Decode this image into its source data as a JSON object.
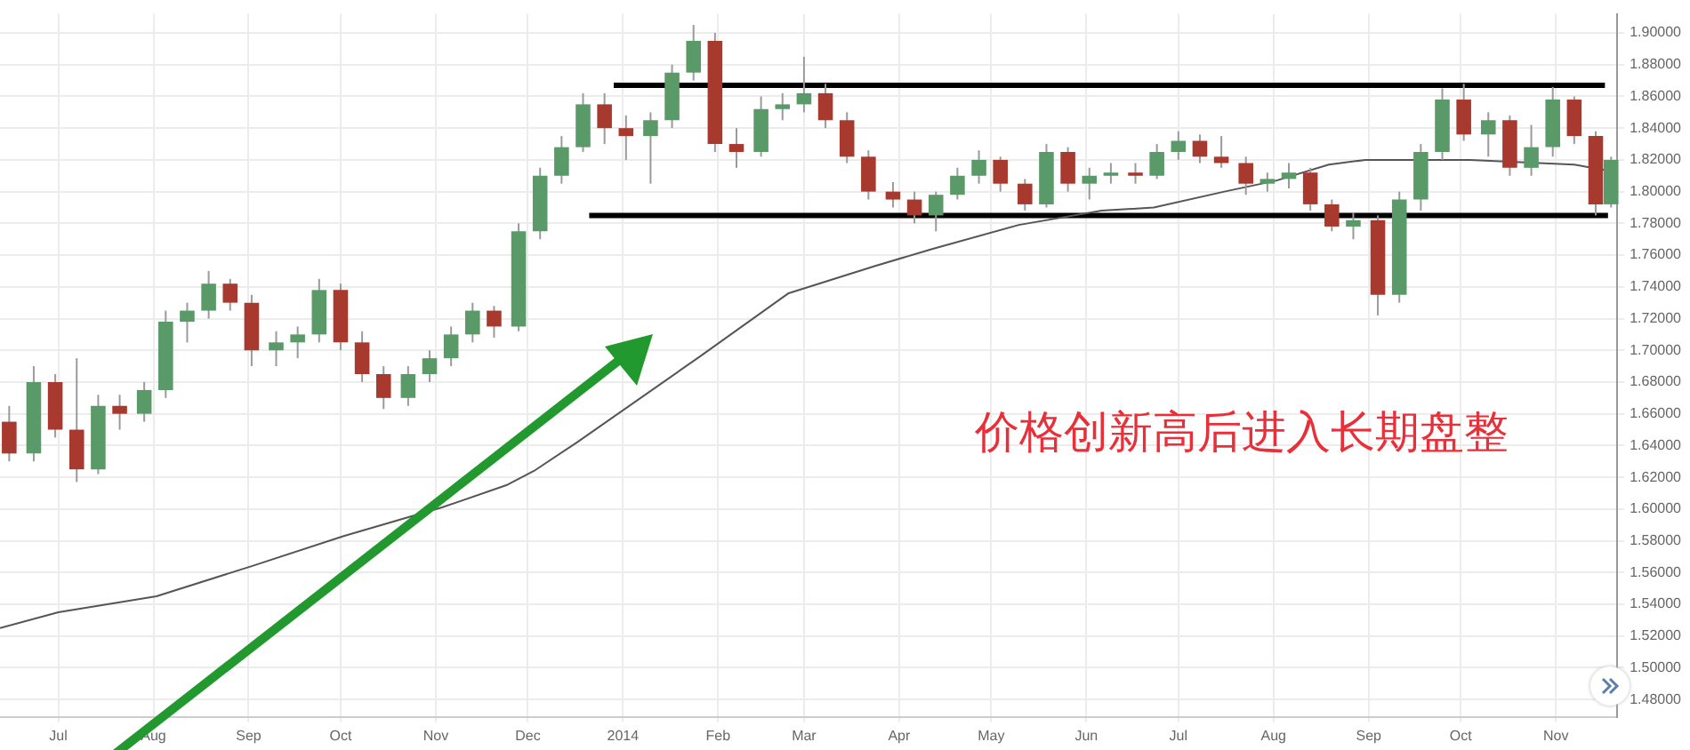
{
  "chart_data": {
    "type": "candlestick",
    "annotations": [
      "价格创新高后进入长期盘整"
    ],
    "x": [
      "2013-06-15",
      "2013-06-23",
      "2013-06-30",
      "2013-07-07",
      "2013-07-14",
      "2013-07-21",
      "2013-07-29",
      "2013-08-05",
      "2013-08-12",
      "2013-08-19",
      "2013-08-26",
      "2013-09-02",
      "2013-09-10",
      "2013-09-17",
      "2013-09-24",
      "2013-10-01",
      "2013-10-08",
      "2013-10-15",
      "2013-10-23",
      "2013-10-30",
      "2013-11-06",
      "2013-11-13",
      "2013-11-20",
      "2013-11-28",
      "2013-12-05",
      "2013-12-12",
      "2013-12-19",
      "2013-12-26",
      "2014-01-02",
      "2014-01-10",
      "2014-01-17",
      "2014-01-24",
      "2014-01-31",
      "2014-02-07",
      "2014-02-15",
      "2014-02-22",
      "2014-03-01",
      "2014-03-08",
      "2014-03-15",
      "2014-03-22",
      "2014-03-30",
      "2014-04-06",
      "2014-04-13",
      "2014-04-20",
      "2014-04-27",
      "2014-05-04",
      "2014-05-12",
      "2014-05-19",
      "2014-05-26",
      "2014-06-02",
      "2014-06-09",
      "2014-06-17",
      "2014-06-24",
      "2014-07-01",
      "2014-07-08",
      "2014-07-15",
      "2014-07-23",
      "2014-07-30",
      "2014-08-06",
      "2014-08-13",
      "2014-08-20",
      "2014-08-27",
      "2014-09-04",
      "2014-09-11",
      "2014-09-18",
      "2014-09-25",
      "2014-10-02",
      "2014-10-10",
      "2014-10-17",
      "2014-10-24",
      "2014-10-31",
      "2014-11-07",
      "2014-11-14",
      "2014-11-19"
    ],
    "ohlc": [
      [
        1.655,
        1.665,
        1.63,
        1.635
      ],
      [
        1.635,
        1.69,
        1.63,
        1.68
      ],
      [
        1.68,
        1.685,
        1.645,
        1.65
      ],
      [
        1.65,
        1.695,
        1.617,
        1.625
      ],
      [
        1.625,
        1.672,
        1.622,
        1.665
      ],
      [
        1.665,
        1.672,
        1.65,
        1.66
      ],
      [
        1.66,
        1.68,
        1.655,
        1.675
      ],
      [
        1.675,
        1.725,
        1.67,
        1.718
      ],
      [
        1.718,
        1.73,
        1.705,
        1.725
      ],
      [
        1.725,
        1.75,
        1.72,
        1.742
      ],
      [
        1.742,
        1.745,
        1.725,
        1.73
      ],
      [
        1.73,
        1.735,
        1.69,
        1.7
      ],
      [
        1.7,
        1.712,
        1.69,
        1.705
      ],
      [
        1.705,
        1.715,
        1.695,
        1.71
      ],
      [
        1.71,
        1.745,
        1.705,
        1.738
      ],
      [
        1.738,
        1.742,
        1.7,
        1.705
      ],
      [
        1.705,
        1.712,
        1.68,
        1.685
      ],
      [
        1.685,
        1.69,
        1.663,
        1.67
      ],
      [
        1.67,
        1.69,
        1.665,
        1.685
      ],
      [
        1.685,
        1.7,
        1.68,
        1.695
      ],
      [
        1.695,
        1.715,
        1.69,
        1.71
      ],
      [
        1.71,
        1.73,
        1.705,
        1.725
      ],
      [
        1.725,
        1.728,
        1.708,
        1.715
      ],
      [
        1.715,
        1.78,
        1.712,
        1.775
      ],
      [
        1.775,
        1.815,
        1.77,
        1.81
      ],
      [
        1.81,
        1.835,
        1.805,
        1.828
      ],
      [
        1.828,
        1.862,
        1.825,
        1.855
      ],
      [
        1.855,
        1.862,
        1.83,
        1.84
      ],
      [
        1.84,
        1.848,
        1.82,
        1.835
      ],
      [
        1.835,
        1.85,
        1.805,
        1.845
      ],
      [
        1.845,
        1.88,
        1.84,
        1.875
      ],
      [
        1.875,
        1.905,
        1.87,
        1.895
      ],
      [
        1.895,
        1.9,
        1.825,
        1.83
      ],
      [
        1.83,
        1.84,
        1.815,
        1.825
      ],
      [
        1.825,
        1.86,
        1.822,
        1.852
      ],
      [
        1.852,
        1.862,
        1.845,
        1.855
      ],
      [
        1.855,
        1.885,
        1.85,
        1.862
      ],
      [
        1.862,
        1.868,
        1.84,
        1.845
      ],
      [
        1.845,
        1.85,
        1.818,
        1.822
      ],
      [
        1.822,
        1.826,
        1.795,
        1.8
      ],
      [
        1.8,
        1.806,
        1.79,
        1.795
      ],
      [
        1.795,
        1.8,
        1.78,
        1.785
      ],
      [
        1.785,
        1.8,
        1.775,
        1.798
      ],
      [
        1.798,
        1.815,
        1.795,
        1.81
      ],
      [
        1.81,
        1.826,
        1.805,
        1.82
      ],
      [
        1.82,
        1.822,
        1.8,
        1.805
      ],
      [
        1.805,
        1.808,
        1.788,
        1.792
      ],
      [
        1.792,
        1.83,
        1.79,
        1.825
      ],
      [
        1.825,
        1.828,
        1.8,
        1.805
      ],
      [
        1.805,
        1.815,
        1.795,
        1.81
      ],
      [
        1.81,
        1.818,
        1.805,
        1.812
      ],
      [
        1.812,
        1.818,
        1.805,
        1.81
      ],
      [
        1.81,
        1.83,
        1.808,
        1.825
      ],
      [
        1.825,
        1.838,
        1.82,
        1.832
      ],
      [
        1.832,
        1.836,
        1.818,
        1.822
      ],
      [
        1.822,
        1.835,
        1.815,
        1.818
      ],
      [
        1.818,
        1.822,
        1.798,
        1.805
      ],
      [
        1.805,
        1.812,
        1.8,
        1.808
      ],
      [
        1.808,
        1.818,
        1.802,
        1.812
      ],
      [
        1.812,
        1.815,
        1.788,
        1.792
      ],
      [
        1.792,
        1.795,
        1.775,
        1.778
      ],
      [
        1.778,
        1.787,
        1.77,
        1.782
      ],
      [
        1.782,
        1.785,
        1.722,
        1.735
      ],
      [
        1.735,
        1.8,
        1.73,
        1.795
      ],
      [
        1.795,
        1.83,
        1.788,
        1.825
      ],
      [
        1.825,
        1.865,
        1.82,
        1.858
      ],
      [
        1.858,
        1.868,
        1.832,
        1.836
      ],
      [
        1.836,
        1.85,
        1.822,
        1.845
      ],
      [
        1.845,
        1.848,
        1.81,
        1.815
      ],
      [
        1.815,
        1.842,
        1.81,
        1.828
      ],
      [
        1.828,
        1.866,
        1.822,
        1.858
      ],
      [
        1.858,
        1.86,
        1.83,
        1.835
      ],
      [
        1.835,
        1.838,
        1.785,
        1.792
      ],
      [
        1.792,
        1.822,
        1.79,
        1.82
      ]
    ],
    "series": [
      {
        "type": "line",
        "color": "#555555",
        "x": [
          "2013-06-12",
          "2013-07-01",
          "2013-08-02",
          "2013-09-02",
          "2013-10-02",
          "2013-11-03",
          "2013-11-24",
          "2013-12-03",
          "2013-12-17",
          "2014-01-26",
          "2014-02-24",
          "2014-03-24",
          "2014-04-12",
          "2014-05-10",
          "2014-06-06",
          "2014-06-23",
          "2014-07-16",
          "2014-08-02",
          "2014-08-19",
          "2014-08-31",
          "2014-10-04",
          "2014-11-07",
          "2014-11-19"
        ],
        "values": [
          1.525,
          1.535,
          1.545,
          1.564,
          1.583,
          1.601,
          1.615,
          1.624,
          1.642,
          1.696,
          1.736,
          1.753,
          1.764,
          1.779,
          1.788,
          1.79,
          1.8,
          1.807,
          1.817,
          1.82,
          1.82,
          1.817,
          1.813
        ]
      },
      {
        "type": "line",
        "color": "#000000",
        "x": [
          "2013-12-29",
          "2014-11-17"
        ],
        "values": [
          1.867,
          1.867
        ]
      },
      {
        "type": "line",
        "color": "#000000",
        "x": [
          "2013-12-21",
          "2014-11-18"
        ],
        "values": [
          1.785,
          1.785
        ]
      }
    ],
    "xlim": [
      "2013-06-12",
      "2014-11-21"
    ],
    "xticks": [
      {
        "value": "2013-07-01",
        "label": "Jul"
      },
      {
        "value": "2013-08-01",
        "label": "Aug"
      },
      {
        "value": "2013-09-01",
        "label": "Sep"
      },
      {
        "value": "2013-10-01",
        "label": "Oct"
      },
      {
        "value": "2013-11-01",
        "label": "Nov"
      },
      {
        "value": "2013-12-01",
        "label": "Dec"
      },
      {
        "value": "2014-01-01",
        "label": "2014"
      },
      {
        "value": "2014-02-01",
        "label": "Feb"
      },
      {
        "value": "2014-03-01",
        "label": "Mar"
      },
      {
        "value": "2014-04-01",
        "label": "Apr"
      },
      {
        "value": "2014-05-01",
        "label": "May"
      },
      {
        "value": "2014-06-01",
        "label": "Jun"
      },
      {
        "value": "2014-07-01",
        "label": "Jul"
      },
      {
        "value": "2014-08-01",
        "label": "Aug"
      },
      {
        "value": "2014-09-01",
        "label": "Sep"
      },
      {
        "value": "2014-10-01",
        "label": "Oct"
      },
      {
        "value": "2014-11-01",
        "label": "Nov"
      }
    ],
    "ylim": [
      1.469,
      1.912
    ],
    "yticks": [
      {
        "value": 1.48,
        "label": "1.48000"
      },
      {
        "value": 1.5,
        "label": "1.50000"
      },
      {
        "value": 1.52,
        "label": "1.52000"
      },
      {
        "value": 1.54,
        "label": "1.54000"
      },
      {
        "value": 1.56,
        "label": "1.56000"
      },
      {
        "value": 1.58,
        "label": "1.58000"
      },
      {
        "value": 1.6,
        "label": "1.60000"
      },
      {
        "value": 1.62,
        "label": "1.62000"
      },
      {
        "value": 1.64,
        "label": "1.64000"
      },
      {
        "value": 1.66,
        "label": "1.66000"
      },
      {
        "value": 1.68,
        "label": "1.68000"
      },
      {
        "value": 1.7,
        "label": "1.70000"
      },
      {
        "value": 1.72,
        "label": "1.72000"
      },
      {
        "value": 1.74,
        "label": "1.74000"
      },
      {
        "value": 1.76,
        "label": "1.76000"
      },
      {
        "value": 1.78,
        "label": "1.78000"
      },
      {
        "value": 1.8,
        "label": "1.80000"
      },
      {
        "value": 1.82,
        "label": "1.82000"
      },
      {
        "value": 1.84,
        "label": "1.84000"
      },
      {
        "value": 1.86,
        "label": "1.86000"
      },
      {
        "value": 1.88,
        "label": "1.88000"
      },
      {
        "value": 1.9,
        "label": "1.90000"
      }
    ],
    "grid": true,
    "legend": false,
    "marker": "none",
    "line_style": "solid"
  }
}
